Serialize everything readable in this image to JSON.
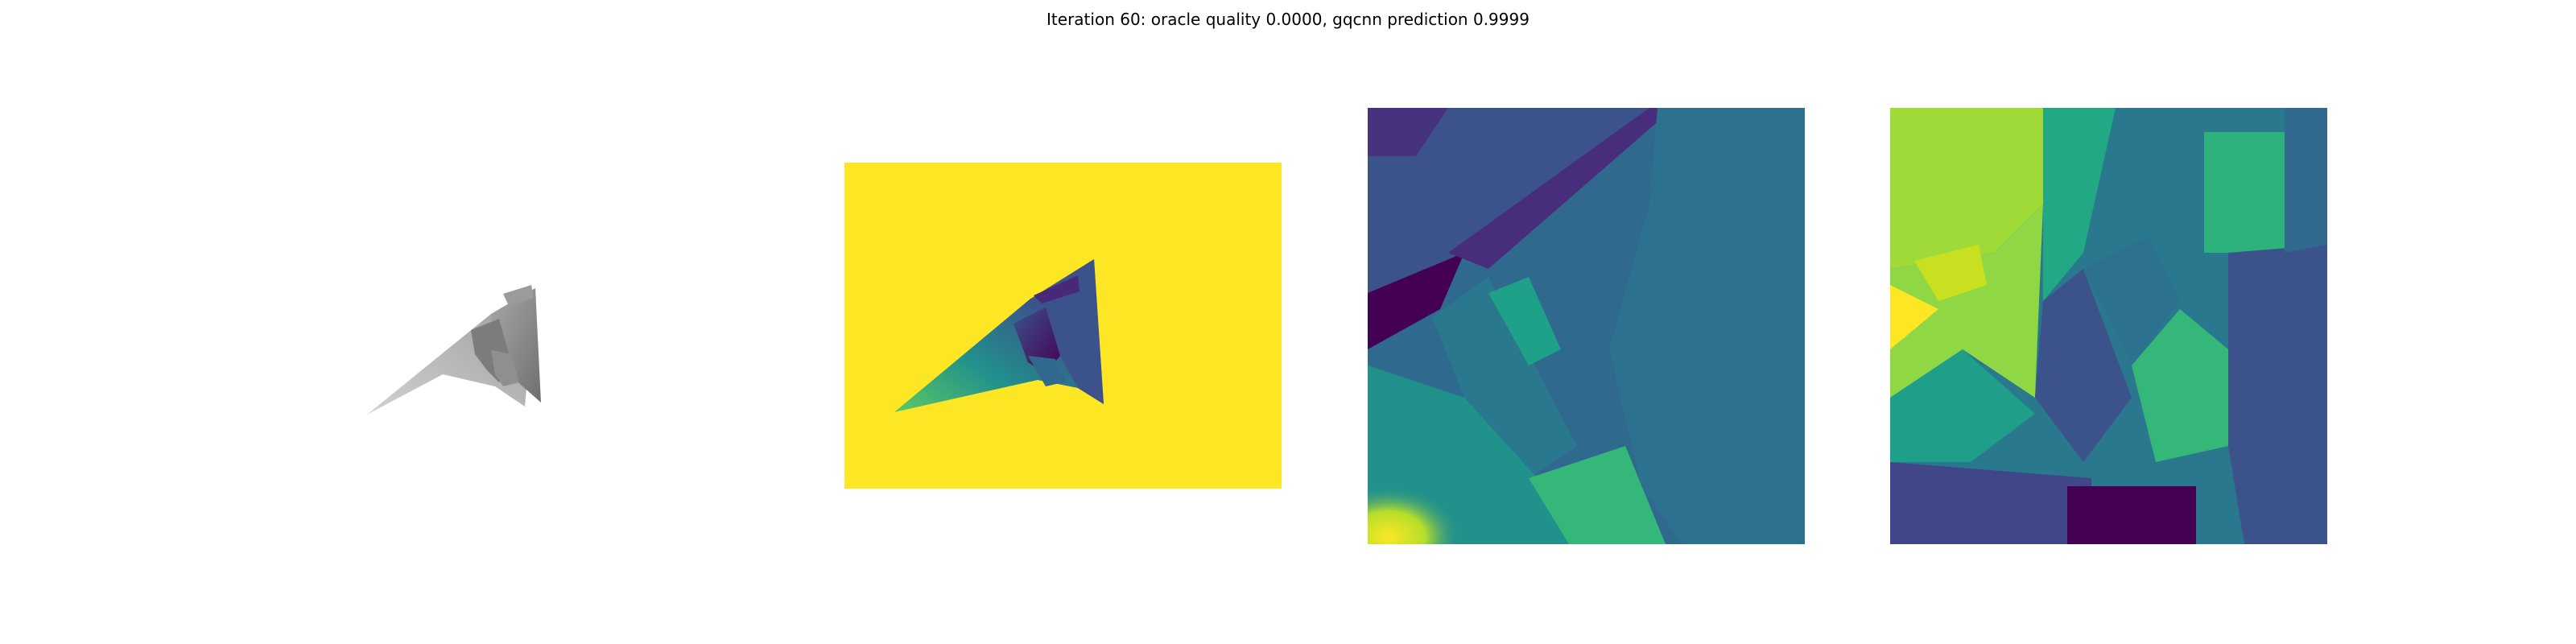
{
  "figure": {
    "title": "Iteration 60: oracle quality 0.0000, gqcnn prediction 0.9999"
  },
  "colors": {
    "background": "#ffffff",
    "viridis_yellow": "#fde725",
    "viridis_purple": "#440154",
    "viridis_teal": "#21918c",
    "viridis_blue": "#3b528b",
    "viridis_green": "#5ec962",
    "object_gray": "#8a8a8a"
  },
  "panels": [
    {
      "id": "render",
      "kind": "grayscale-object-render"
    },
    {
      "id": "depth",
      "kind": "viridis-depth-image"
    },
    {
      "id": "crop-depth",
      "kind": "viridis-cropped-depth-heatmap"
    },
    {
      "id": "crop-feature",
      "kind": "viridis-cropped-feature-heatmap"
    }
  ]
}
